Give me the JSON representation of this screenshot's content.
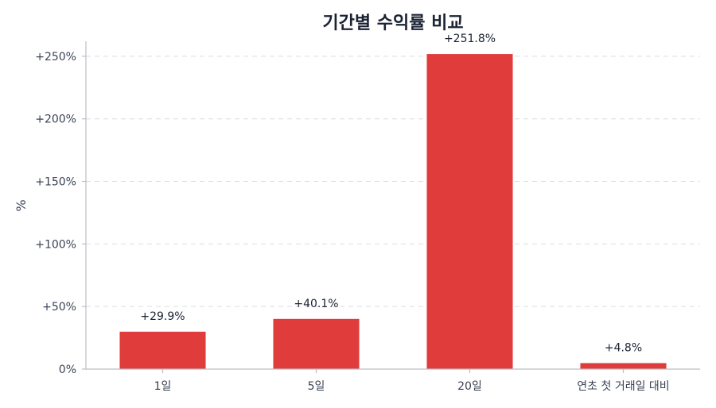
{
  "chart_data": {
    "type": "bar",
    "title": "기간별 수익률 비교",
    "xlabel": "",
    "ylabel": "%",
    "categories": [
      "1일",
      "5일",
      "20일",
      "연초 첫 거래일 대비"
    ],
    "values": [
      29.9,
      40.1,
      251.8,
      4.8
    ],
    "data_labels": [
      "+29.9%",
      "+40.1%",
      "+251.8%",
      "+4.8%"
    ],
    "ylim": [
      0,
      262
    ],
    "yticks": [
      0,
      50,
      100,
      150,
      200,
      250
    ],
    "ytick_labels": [
      "0%",
      "+50%",
      "+100%",
      "+150%",
      "+200%",
      "+250%"
    ],
    "grid": true,
    "bar_color": "#e03c3c"
  }
}
